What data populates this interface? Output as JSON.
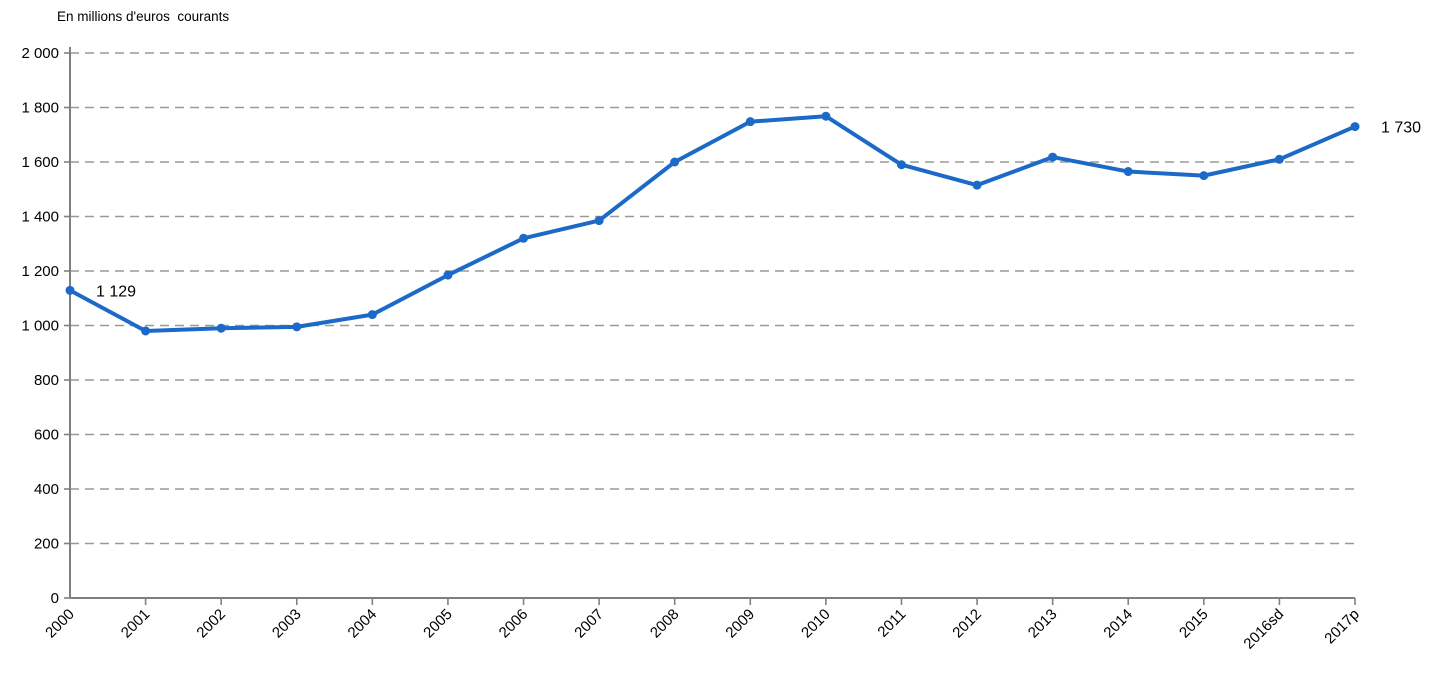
{
  "chart": {
    "title": "En millions d'euros  courants"
  },
  "chart_data": {
    "type": "line",
    "title": "En millions d'euros  courants",
    "xlabel": "",
    "ylabel": "",
    "categories": [
      "2000",
      "2001",
      "2002",
      "2003",
      "2004",
      "2005",
      "2006",
      "2007",
      "2008",
      "2009",
      "2010",
      "2011",
      "2012",
      "2013",
      "2014",
      "2015",
      "2016sd",
      "2017p"
    ],
    "values": [
      1129,
      980,
      990,
      995,
      1040,
      1185,
      1320,
      1385,
      1600,
      1748,
      1768,
      1590,
      1515,
      1618,
      1565,
      1550,
      1610,
      1730
    ],
    "ylim": [
      0,
      2000
    ],
    "ytick_step": 200,
    "ytick_labels": [
      "0",
      "200",
      "400",
      "600",
      "800",
      "1 000",
      "1 200",
      "1 400",
      "1 600",
      "1 800",
      "2 000"
    ],
    "grid": "horizontal-dashed",
    "legend_position": "none",
    "annotations": [
      {
        "category": "2000",
        "text": "1 129"
      },
      {
        "category": "2017p",
        "text": "1 730"
      }
    ],
    "colors": {
      "line": "#1c69c8",
      "marker": "#1c69c8",
      "gridline": "#999999",
      "axis": "#808080",
      "text": "#000000"
    }
  }
}
